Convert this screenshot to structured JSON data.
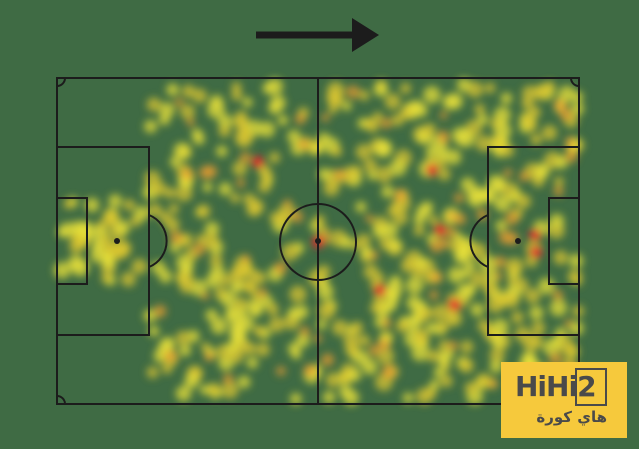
{
  "direction": "attack-right",
  "colors": {
    "pitch": "#3f6b44",
    "lines": "#1c1c1c",
    "heat_low": "#e8e23a",
    "heat_high": "#e8262a"
  },
  "logo": {
    "text": "HiHi2",
    "arabic": "هاي كورة"
  }
}
